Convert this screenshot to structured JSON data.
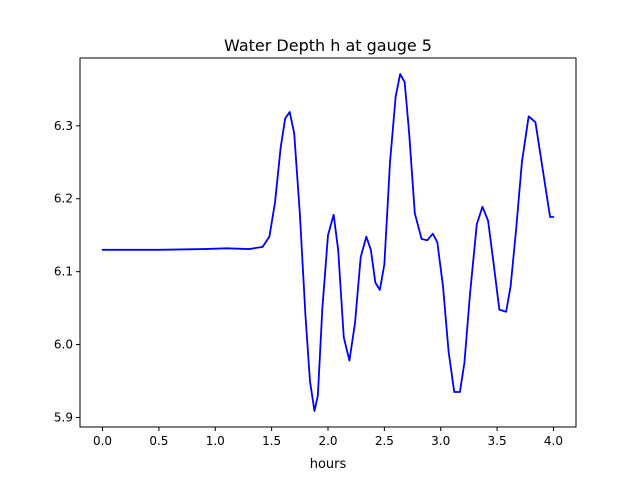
{
  "chart_data": {
    "type": "line",
    "title": "Water Depth h at gauge 5",
    "xlabel": "hours",
    "ylabel": "",
    "xlim": [
      -0.2,
      4.2
    ],
    "ylim": [
      5.887,
      6.393
    ],
    "grid": false,
    "x_ticks": [
      0.0,
      0.5,
      1.0,
      1.5,
      2.0,
      2.5,
      3.0,
      3.5,
      4.0
    ],
    "x_tick_labels": [
      "0.0",
      "0.5",
      "1.0",
      "1.5",
      "2.0",
      "2.5",
      "3.0",
      "3.5",
      "4.0"
    ],
    "y_ticks": [
      5.9,
      6.0,
      6.1,
      6.2,
      6.3
    ],
    "y_tick_labels": [
      "5.9",
      "6.0",
      "6.1",
      "6.2",
      "6.3"
    ],
    "series": [
      {
        "color": "#0000ff",
        "x": [
          0.0,
          0.5,
          0.9,
          1.1,
          1.3,
          1.42,
          1.48,
          1.53,
          1.58,
          1.62,
          1.66,
          1.7,
          1.75,
          1.8,
          1.84,
          1.88,
          1.91,
          1.95,
          2.0,
          2.05,
          2.09,
          2.14,
          2.19,
          2.24,
          2.29,
          2.34,
          2.38,
          2.42,
          2.46,
          2.5,
          2.55,
          2.6,
          2.64,
          2.68,
          2.72,
          2.77,
          2.83,
          2.88,
          2.93,
          2.97,
          3.02,
          3.07,
          3.12,
          3.17,
          3.21,
          3.26,
          3.32,
          3.37,
          3.42,
          3.47,
          3.52,
          3.58,
          3.62,
          3.67,
          3.72,
          3.78,
          3.84,
          3.89,
          3.93,
          3.97,
          4.0
        ],
        "y": [
          6.13,
          6.13,
          6.131,
          6.132,
          6.131,
          6.134,
          6.148,
          6.195,
          6.27,
          6.31,
          6.319,
          6.29,
          6.18,
          6.04,
          5.95,
          5.909,
          5.93,
          6.05,
          6.15,
          6.178,
          6.13,
          6.01,
          5.978,
          6.03,
          6.12,
          6.148,
          6.13,
          6.085,
          6.075,
          6.11,
          6.25,
          6.34,
          6.371,
          6.36,
          6.29,
          6.18,
          6.145,
          6.143,
          6.152,
          6.14,
          6.08,
          5.99,
          5.935,
          5.935,
          5.975,
          6.07,
          6.165,
          6.189,
          6.17,
          6.11,
          6.048,
          6.045,
          6.08,
          6.16,
          6.25,
          6.313,
          6.305,
          6.255,
          6.215,
          6.175,
          6.175
        ]
      }
    ]
  }
}
